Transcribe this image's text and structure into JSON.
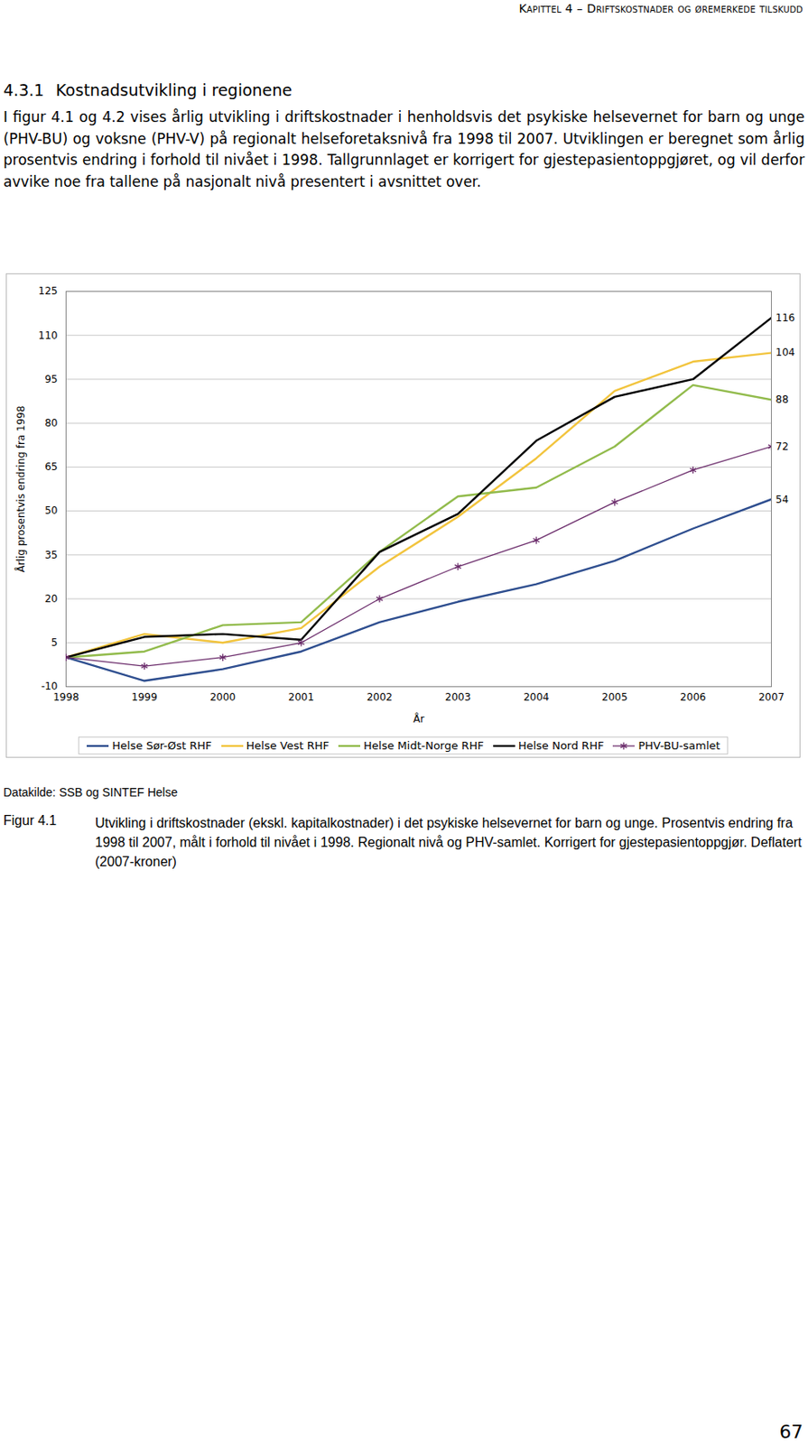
{
  "header": "Kapittel 4 – Driftskostnader og øremerkede tilskudd",
  "section": {
    "number": "4.3.1",
    "title": "Kostnadsutvikling i regionene"
  },
  "paragraph": "I figur 4.1 og 4.2 vises årlig utvikling i driftskostnader i henholdsvis det psykiske helsevernet for barn og unge (PHV-BU) og voksne (PHV-V) på regionalt helseforetaksnivå fra 1998 til 2007. Utviklingen er beregnet som årlig prosentvis endring i forhold til nivået i 1998. Tallgrunnlaget er korrigert for gjestepasientoppgjøret, og vil derfor avvike noe fra tallene på nasjonalt nivå presentert i avsnittet over.",
  "chart_data": {
    "type": "line",
    "x_label": "År",
    "y_label": "Årlig prosentvis endring fra 1998",
    "x": [
      1998,
      1999,
      2000,
      2001,
      2002,
      2003,
      2004,
      2005,
      2006,
      2007
    ],
    "xlim": [
      1998,
      2007
    ],
    "xticks": [
      1998,
      1999,
      2000,
      2001,
      2002,
      2003,
      2004,
      2005,
      2006,
      2007
    ],
    "ylim": [
      -10,
      125
    ],
    "yticks": [
      -10,
      5,
      20,
      35,
      50,
      65,
      80,
      95,
      110,
      125
    ],
    "grid": true,
    "legend": "bottom",
    "series": [
      {
        "name": "Helse Sør-Øst RHF",
        "color": "#2e4e8f",
        "values": [
          0,
          -8,
          -4,
          2,
          12,
          19,
          25,
          33,
          44,
          54
        ]
      },
      {
        "name": "Helse Vest RHF",
        "color": "#f2c43d",
        "values": [
          0,
          8,
          5,
          10,
          31,
          48,
          68,
          91,
          101,
          104
        ]
      },
      {
        "name": "Helse Midt-Norge RHF",
        "color": "#92bb4c",
        "values": [
          0,
          2,
          11,
          12,
          36,
          55,
          58,
          72,
          93,
          88
        ]
      },
      {
        "name": "Helse Nord RHF",
        "color": "#000000",
        "values": [
          0,
          7,
          8,
          6,
          36,
          49,
          74,
          89,
          95,
          116
        ]
      },
      {
        "name": "PHV-BU-samlet",
        "color": "#6b2c6b",
        "marker": "asterisk",
        "values": [
          0,
          -3,
          0,
          5,
          20,
          31,
          40,
          53,
          64,
          72
        ]
      }
    ],
    "annotations": [
      {
        "x": 2007,
        "y": 116,
        "text": "116"
      },
      {
        "x": 2007,
        "y": 104,
        "text": "104"
      },
      {
        "x": 2007,
        "y": 88,
        "text": "88"
      },
      {
        "x": 2007,
        "y": 72,
        "text": "72"
      },
      {
        "x": 2007,
        "y": 54,
        "text": "54"
      }
    ]
  },
  "source": "Datakilde: SSB og SINTEF Helse",
  "caption": {
    "label": "Figur 4.1",
    "text": "Utvikling i driftskostnader (ekskl. kapitalkostnader) i det psykiske helsevernet for barn og unge. Prosentvis endring fra 1998 til 2007, målt i forhold til nivået i 1998. Regionalt nivå og PHV-samlet. Korrigert for gjestepasientoppgjør. Deflatert (2007-kroner)"
  },
  "page_number": 67
}
